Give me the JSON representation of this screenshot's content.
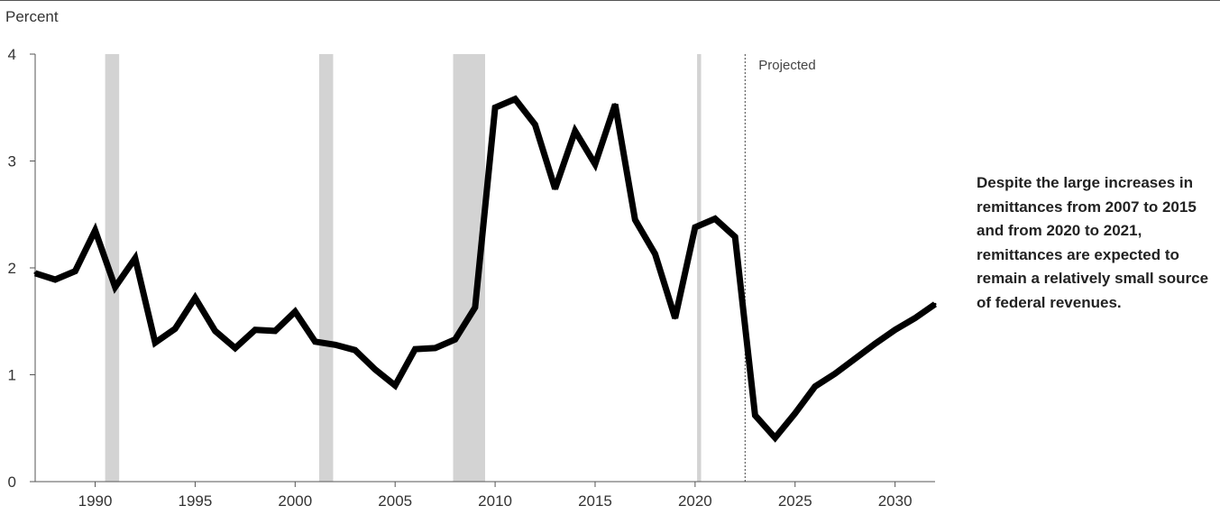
{
  "chart_data": {
    "type": "line",
    "title": "",
    "ylabel": "Percent",
    "xlabel": "",
    "xlim": [
      1987,
      2032
    ],
    "ylim": [
      0,
      4
    ],
    "yticks": [
      0,
      1,
      2,
      3,
      4
    ],
    "xticks": [
      1990,
      1995,
      2000,
      2005,
      2010,
      2015,
      2020,
      2025,
      2030
    ],
    "grid": false,
    "recessions": [
      [
        1990.5,
        1991.2
      ],
      [
        2001.2,
        2001.9
      ],
      [
        2007.9,
        2009.5
      ],
      [
        2020.1,
        2020.3
      ]
    ],
    "projection_start": 2022.5,
    "projection_label": "Projected",
    "annotation": "Despite the large increases in remittances from 2007 to 2015 and from 2020 to 2021, remittances are expected to remain a relatively small source of federal revenues.",
    "series": [
      {
        "x": [
          1987,
          1988,
          1989,
          1990,
          1991,
          1992,
          1993,
          1994,
          1995,
          1996,
          1997,
          1998,
          1999,
          2000,
          2001,
          2002,
          2003,
          2004,
          2005,
          2006,
          2007,
          2008,
          2009,
          2010,
          2011,
          2012,
          2013,
          2014,
          2015,
          2016,
          2017,
          2018,
          2019,
          2020,
          2021,
          2022,
          2023,
          2024,
          2025,
          2026,
          2027,
          2028,
          2029,
          2030,
          2031,
          2032
        ],
        "values": [
          1.95,
          1.89,
          1.97,
          2.35,
          1.82,
          2.09,
          1.3,
          1.43,
          1.72,
          1.41,
          1.25,
          1.42,
          1.41,
          1.59,
          1.31,
          1.28,
          1.23,
          1.05,
          0.9,
          1.24,
          1.25,
          1.33,
          1.63,
          3.5,
          3.58,
          3.34,
          2.74,
          3.28,
          2.97,
          3.53,
          2.45,
          2.13,
          1.53,
          2.38,
          2.46,
          2.29,
          0.62,
          0.41,
          0.64,
          0.89,
          1.01,
          1.15,
          1.29,
          1.42,
          1.53,
          1.66
        ]
      }
    ],
    "colors": {
      "line": "#000000",
      "recession": "#d3d3d3",
      "axis": "#555555",
      "projection": "#444444"
    }
  }
}
